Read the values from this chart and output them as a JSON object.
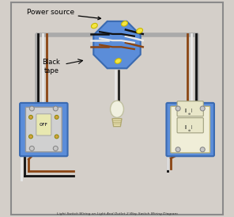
{
  "bg_color": "#d4cfc9",
  "border_color": "#8a8a8a",
  "title": "Light Switch Wiring on Light And Outlet 2 Way Switch Wiring Diagram",
  "label_power": "Power source",
  "label_tape": "Black\ntape",
  "junction_box_color": "#5b8dd9",
  "wire_black": "#111111",
  "wire_white": "#e8e8e8",
  "wire_brown": "#8B4513",
  "wire_gray": "#aaaaaa",
  "wire_yellow_tip": "#f5e642",
  "light_bulb_color": "#f0f0e0",
  "light_base_color": "#e8e0b0",
  "switch_color": "#d0d0d0",
  "outlet_color": "#f0eed8",
  "figsize": [
    2.96,
    2.74
  ],
  "dpi": 100
}
